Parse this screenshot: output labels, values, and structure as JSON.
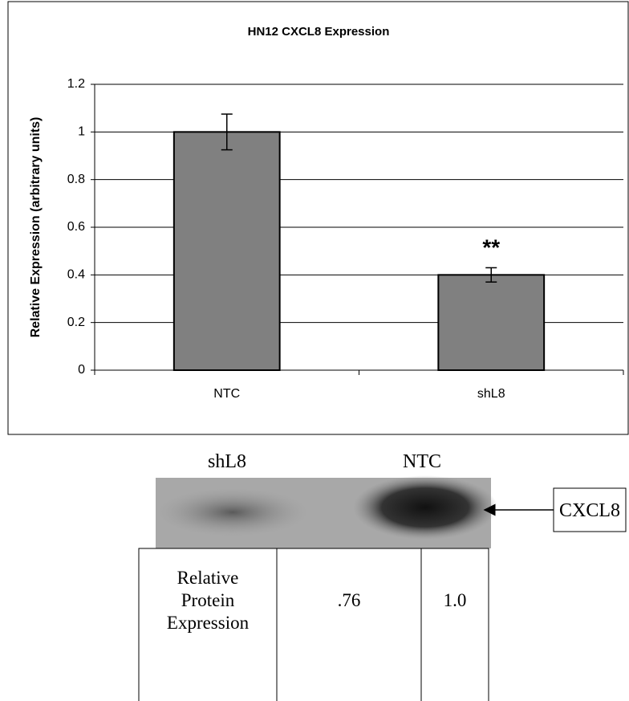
{
  "chart_data": {
    "type": "bar",
    "title": "HN12 CXCL8 Expression",
    "y_label": "Relative Expression (arbitrary units)",
    "categories": [
      "NTC",
      "shL8"
    ],
    "values": [
      1.0,
      0.4
    ],
    "errors": [
      0.075,
      0.03
    ],
    "color": "#808080",
    "annotation": "**",
    "ylim": [
      0,
      1.2
    ],
    "yticks": [
      0,
      0.2,
      0.4,
      0.6,
      0.8,
      1,
      1.2
    ],
    "grid": true
  },
  "blot": {
    "lane_labels": [
      "shL8",
      "NTC"
    ],
    "band_label": "CXCL8",
    "table": {
      "row_header": [
        "Relative",
        "Protein",
        "Expression"
      ],
      "cells": [
        ".76",
        "1.0"
      ]
    }
  }
}
